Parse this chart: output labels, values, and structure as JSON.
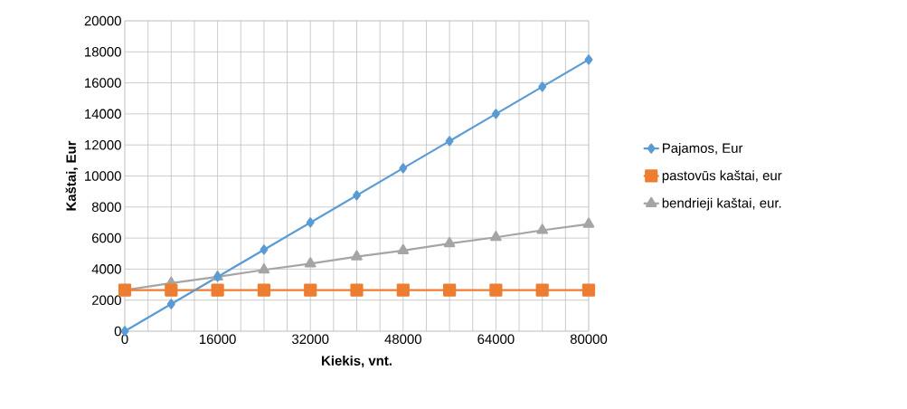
{
  "chart_data": {
    "type": "line",
    "xlabel": "Kiekis, vnt.",
    "ylabel": "Kaštai, Eur",
    "x": [
      0,
      8000,
      16000,
      24000,
      32000,
      40000,
      48000,
      56000,
      64000,
      72000,
      80000
    ],
    "xlim": [
      0,
      80000
    ],
    "xticks": [
      0,
      {
        "value": 4000,
        "label": null
      },
      {
        "value": 8000,
        "label": null
      },
      {
        "value": 12000,
        "label": null
      },
      16000,
      {
        "value": 20000,
        "label": null
      },
      {
        "value": 24000,
        "label": null
      },
      {
        "value": 28000,
        "label": null
      },
      32000,
      {
        "value": 36000,
        "label": null
      },
      {
        "value": 40000,
        "label": null
      },
      {
        "value": 44000,
        "label": null
      },
      48000,
      {
        "value": 52000,
        "label": null
      },
      {
        "value": 56000,
        "label": null
      },
      {
        "value": 60000,
        "label": null
      },
      64000,
      {
        "value": 68000,
        "label": null
      },
      {
        "value": 72000,
        "label": null
      },
      {
        "value": 76000,
        "label": null
      },
      80000
    ],
    "ylim": [
      0,
      20000
    ],
    "yticks": [
      0,
      2000,
      4000,
      6000,
      8000,
      10000,
      12000,
      14000,
      16000,
      18000,
      20000
    ],
    "grid": true,
    "legend": "right",
    "series": [
      {
        "name": "Pajamos, Eur",
        "color": "#5b9bd5",
        "marker": "diamond",
        "values": [
          0,
          1750,
          3500,
          5250,
          7000,
          8750,
          10500,
          12250,
          14000,
          15750,
          17500
        ]
      },
      {
        "name": "pastovūs kaštai, eur",
        "color": "#ed7d31",
        "marker": "square",
        "values": [
          2650,
          2650,
          2650,
          2650,
          2650,
          2650,
          2650,
          2650,
          2650,
          2650,
          2650
        ]
      },
      {
        "name": "bendrieji kaštai, eur.",
        "color": "#a5a5a5",
        "marker": "triangle",
        "values": [
          2650,
          3100,
          3500,
          3950,
          4350,
          4800,
          5200,
          5650,
          6050,
          6500,
          6900
        ]
      }
    ]
  }
}
